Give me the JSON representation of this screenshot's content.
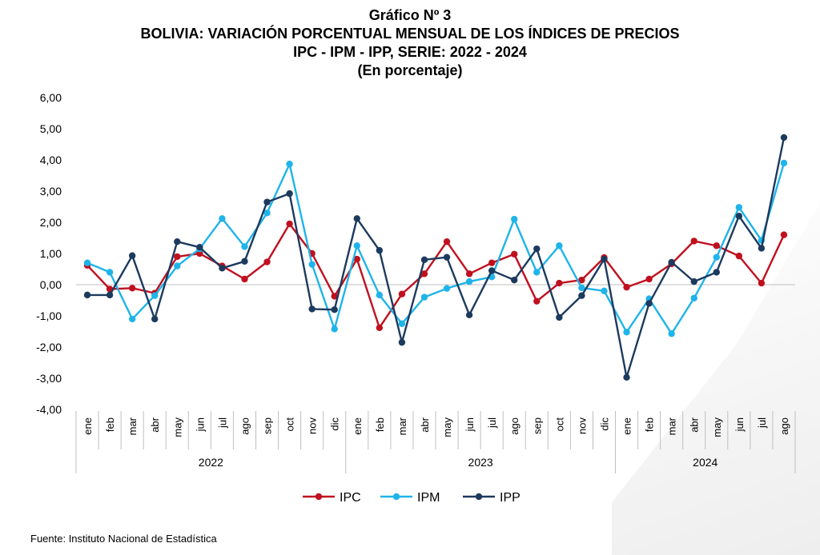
{
  "header": {
    "line1": "Gráfico Nº 3",
    "line2": "BOLIVIA: VARIACIÓN PORCENTUAL MENSUAL DE LOS ÍNDICES DE PRECIOS",
    "line3": "IPC - IPM - IPP, SERIE: 2022 - 2024",
    "line4": "(En porcentaje)"
  },
  "source": "Fuente: Instituto Nacional de Estadística",
  "chart_data": {
    "type": "line",
    "title": "BOLIVIA: VARIACIÓN PORCENTUAL MENSUAL DE LOS ÍNDICES DE PRECIOS",
    "ylim": [
      -4,
      6
    ],
    "yticks": [
      "-4,00",
      "-3,00",
      "-2,00",
      "-1,00",
      "0,00",
      "1,00",
      "2,00",
      "3,00",
      "4,00",
      "5,00",
      "6,00"
    ],
    "grid": false,
    "legend": "bottom",
    "years": [
      {
        "label": "2022",
        "count": 12
      },
      {
        "label": "2023",
        "count": 12
      },
      {
        "label": "2024",
        "count": 8
      }
    ],
    "categories": [
      "ene",
      "feb",
      "mar",
      "abr",
      "may",
      "jun",
      "jul",
      "ago",
      "sep",
      "oct",
      "nov",
      "dic",
      "ene",
      "feb",
      "mar",
      "abr",
      "may",
      "jun",
      "jul",
      "ago",
      "sep",
      "oct",
      "nov",
      "dic",
      "ene",
      "feb",
      "mar",
      "abr",
      "may",
      "jun",
      "jul",
      "ago"
    ],
    "series": [
      {
        "name": "IPC",
        "color": "#c0101f",
        "values": [
          0.62,
          -0.14,
          -0.11,
          -0.27,
          0.9,
          1.0,
          0.6,
          0.18,
          0.73,
          1.95,
          1.0,
          -0.37,
          0.82,
          -1.38,
          -0.3,
          0.35,
          1.38,
          0.35,
          0.7,
          0.98,
          -0.53,
          0.05,
          0.15,
          0.87,
          -0.08,
          0.18,
          0.67,
          1.4,
          1.25,
          0.92,
          0.05,
          1.6
        ]
      },
      {
        "name": "IPM",
        "color": "#1fb4ea",
        "values": [
          0.7,
          0.4,
          -1.1,
          -0.35,
          0.6,
          1.15,
          2.12,
          1.22,
          2.3,
          3.87,
          0.65,
          -1.42,
          1.25,
          -0.33,
          -1.25,
          -0.4,
          -0.12,
          0.1,
          0.25,
          2.1,
          0.4,
          1.25,
          -0.1,
          -0.2,
          -1.52,
          -0.45,
          -1.57,
          -0.43,
          0.88,
          2.48,
          1.42,
          3.9
        ]
      },
      {
        "name": "IPP",
        "color": "#1c3a5e",
        "values": [
          -0.33,
          -0.33,
          0.93,
          -1.1,
          1.38,
          1.2,
          0.53,
          0.75,
          2.65,
          2.92,
          -0.78,
          -0.8,
          2.12,
          1.1,
          -1.85,
          0.8,
          0.88,
          -0.97,
          0.45,
          0.15,
          1.15,
          -1.05,
          -0.35,
          0.82,
          -2.97,
          -0.6,
          0.72,
          0.1,
          0.4,
          2.2,
          1.17,
          4.72
        ]
      }
    ]
  }
}
